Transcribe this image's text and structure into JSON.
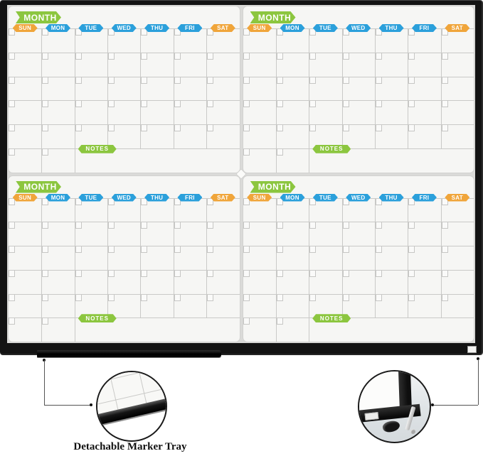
{
  "board": {
    "month_label": "MONTH",
    "notes_label": "NOTES",
    "days": [
      {
        "label": "SUN",
        "color": "#F0A53A"
      },
      {
        "label": "MON",
        "color": "#2BA0DB"
      },
      {
        "label": "TUE",
        "color": "#2BA0DB"
      },
      {
        "label": "WED",
        "color": "#2BA0DB"
      },
      {
        "label": "THU",
        "color": "#2BA0DB"
      },
      {
        "label": "FRI",
        "color": "#2BA0DB"
      },
      {
        "label": "SAT",
        "color": "#F0A53A"
      }
    ],
    "quadrant_count": 4,
    "grid": {
      "columns": 7,
      "rows": 6,
      "notes_start_column": 3
    },
    "colors": {
      "banner_green": "#8CC63F",
      "weekend_orange": "#F0A53A",
      "weekday_blue": "#2BA0DB",
      "frame_black": "#131313",
      "panel_white": "#F6F6F4",
      "grid_line": "#C9C9C7",
      "board_background": "#DADAD8"
    }
  },
  "callouts": {
    "marker_tray": {
      "caption": "Detachable Marker Tray"
    }
  }
}
